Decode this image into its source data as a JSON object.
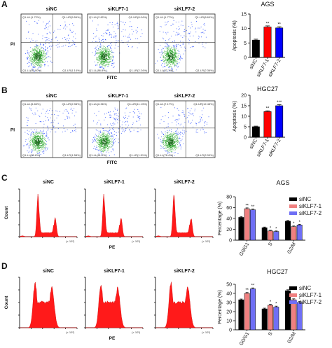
{
  "panels": [
    {
      "id": "A",
      "flow": {
        "samples": [
          {
            "name": "siNC",
            "quadrants": [
              "Q1-UL(1.72%)",
              "Q1-UR(5.59%)",
              "Q1-LL(93.00%)",
              "Q1-LR(1.14%)"
            ]
          },
          {
            "name": "siKLF7-1",
            "quadrants": [
              "Q1-UL(2.82%)",
              "Q1-UR(8.04%)",
              "Q1-LL(86.8%)",
              "Q1-LR(2.24%)"
            ]
          },
          {
            "name": "siKLF7-2",
            "quadrants": [
              "Q1-UL(1.77%)",
              "Q1-UR(8.60%)",
              "Q1-LL(87.1%)",
              "Q1-LR(2.36%)"
            ]
          }
        ],
        "xlabel": "FITC",
        "ylabel": "PI"
      },
      "chart": {
        "type": "bar",
        "title": "AGS",
        "ylabel": "Apoptosis (%)",
        "categories": [
          "siNC",
          "siKLF7-1",
          "siKLF7-2"
        ],
        "values": [
          6.0,
          10.5,
          10.2
        ],
        "errors": [
          0.3,
          0.4,
          0.4
        ],
        "colors": [
          "#000000",
          "#ff0000",
          "#0000ff"
        ],
        "significance": [
          "",
          "**",
          "**"
        ],
        "ylim": [
          0,
          15
        ],
        "yticks": [
          "0",
          "5",
          "10",
          "15"
        ]
      }
    },
    {
      "id": "B",
      "flow": {
        "samples": [
          {
            "name": "siNC",
            "quadrants": [
              "Q1-UL(5.65%)",
              "Q1-UR(2.98%)",
              "Q1-LL(89.8%)",
              "Q1-LR(1.58%)"
            ]
          },
          {
            "name": "siKLF7-1",
            "quadrants": [
              "Q1-UL(6.36%)",
              "Q1-UR(11.13%)",
              "Q1-LL(81.0%)",
              "Q1-LR(1.51%)"
            ]
          },
          {
            "name": "siKLF7-2",
            "quadrants": [
              "Q1-UL(7.17%)",
              "Q1-UR(12.45%)",
              "Q1-LL(78.4%)",
              "Q1-LR(2.00%)"
            ]
          }
        ],
        "xlabel": "FITC",
        "ylabel": "PI"
      },
      "chart": {
        "type": "bar",
        "title": "HGC27",
        "ylabel": "Apoptosis (%)",
        "categories": [
          "siNC",
          "siKLF7-1",
          "siKLF7-2"
        ],
        "values": [
          5.0,
          12.2,
          15.0
        ],
        "errors": [
          0.3,
          0.4,
          0.5
        ],
        "colors": [
          "#000000",
          "#ff0000",
          "#0000ff"
        ],
        "significance": [
          "",
          "**",
          "***"
        ],
        "ylim": [
          0,
          20
        ],
        "yticks": [
          "0",
          "5",
          "10",
          "15",
          "20"
        ]
      }
    },
    {
      "id": "C",
      "hist": {
        "samples": [
          "siNC",
          "siKLF7-1",
          "siKLF7-2"
        ],
        "xlabel": "PE",
        "ylabel": "Count",
        "multiplier": "(× 10³)"
      },
      "chart": {
        "type": "bar",
        "title": "AGS",
        "ylabel": "Percentage (%)",
        "categories": [
          "G0/G1",
          "S",
          "G2/M"
        ],
        "series": [
          {
            "name": "siNC",
            "color": "#000000",
            "values": [
              42,
              23,
              35
            ],
            "errors": [
              1.5,
              1.2,
              1.5
            ],
            "significance": [
              "",
              "",
              ""
            ]
          },
          {
            "name": "siKLF7-1",
            "color": "#f08080",
            "values": [
              58,
              17,
              25
            ],
            "errors": [
              1.5,
              1.2,
              1.2
            ],
            "significance": [
              "**",
              "*",
              "*"
            ]
          },
          {
            "name": "siKLF7-2",
            "color": "#6f6ff5",
            "values": [
              56,
              16,
              28
            ],
            "errors": [
              1.5,
              1.0,
              1.2
            ],
            "significance": [
              "**",
              "*",
              "*"
            ]
          }
        ],
        "ylim": [
          0,
          80
        ],
        "yticks": [
          "0",
          "20",
          "40",
          "60",
          "80"
        ]
      }
    },
    {
      "id": "D",
      "hist": {
        "samples": [
          "siNC",
          "siKLF7-1",
          "siKLF7-2"
        ],
        "xlabel": "PE",
        "ylabel": "Count",
        "multiplier": "(× 10³)"
      },
      "chart": {
        "type": "bar",
        "title": "HGC27",
        "ylabel": "Percentage (%)",
        "categories": [
          "G0/G1",
          "S",
          "G2/M"
        ],
        "series": [
          {
            "name": "siNC",
            "color": "#000000",
            "values": [
              33,
              23,
              43
            ],
            "errors": [
              0.8,
              0.8,
              1.0
            ],
            "significance": [
              "",
              "",
              ""
            ]
          },
          {
            "name": "siKLF7-1",
            "color": "#f08080",
            "values": [
              40,
              27,
              33
            ],
            "errors": [
              1.0,
              1.0,
              1.0
            ],
            "significance": [
              "**",
              "*",
              "*"
            ]
          },
          {
            "name": "siKLF7-2",
            "color": "#6f6ff5",
            "values": [
              45,
              25,
              30
            ],
            "errors": [
              1.0,
              1.0,
              1.0
            ],
            "significance": [
              "**",
              "*",
              "*"
            ]
          }
        ],
        "ylim": [
          0,
          50
        ],
        "yticks": [
          "0",
          "10",
          "20",
          "30",
          "40",
          "50"
        ]
      }
    }
  ],
  "chart_data": [
    {
      "type": "bar",
      "title": "AGS",
      "ylabel": "Apoptosis (%)",
      "categories": [
        "siNC",
        "siKLF7-1",
        "siKLF7-2"
      ],
      "values": [
        6.0,
        10.5,
        10.2
      ],
      "ylim": [
        0,
        15
      ]
    },
    {
      "type": "bar",
      "title": "HGC27",
      "ylabel": "Apoptosis (%)",
      "categories": [
        "siNC",
        "siKLF7-1",
        "siKLF7-2"
      ],
      "values": [
        5.0,
        12.2,
        15.0
      ],
      "ylim": [
        0,
        20
      ]
    },
    {
      "type": "bar",
      "title": "AGS",
      "ylabel": "Percentage (%)",
      "categories": [
        "G0/G1",
        "S",
        "G2/M"
      ],
      "series": [
        {
          "name": "siNC",
          "values": [
            42,
            23,
            35
          ]
        },
        {
          "name": "siKLF7-1",
          "values": [
            58,
            17,
            25
          ]
        },
        {
          "name": "siKLF7-2",
          "values": [
            56,
            16,
            28
          ]
        }
      ],
      "ylim": [
        0,
        80
      ]
    },
    {
      "type": "bar",
      "title": "HGC27",
      "ylabel": "Percentage (%)",
      "categories": [
        "G0/G1",
        "S",
        "G2/M"
      ],
      "series": [
        {
          "name": "siNC",
          "values": [
            33,
            23,
            43
          ]
        },
        {
          "name": "siKLF7-1",
          "values": [
            40,
            27,
            33
          ]
        },
        {
          "name": "siKLF7-2",
          "values": [
            45,
            25,
            30
          ]
        }
      ],
      "ylim": [
        0,
        50
      ]
    }
  ]
}
